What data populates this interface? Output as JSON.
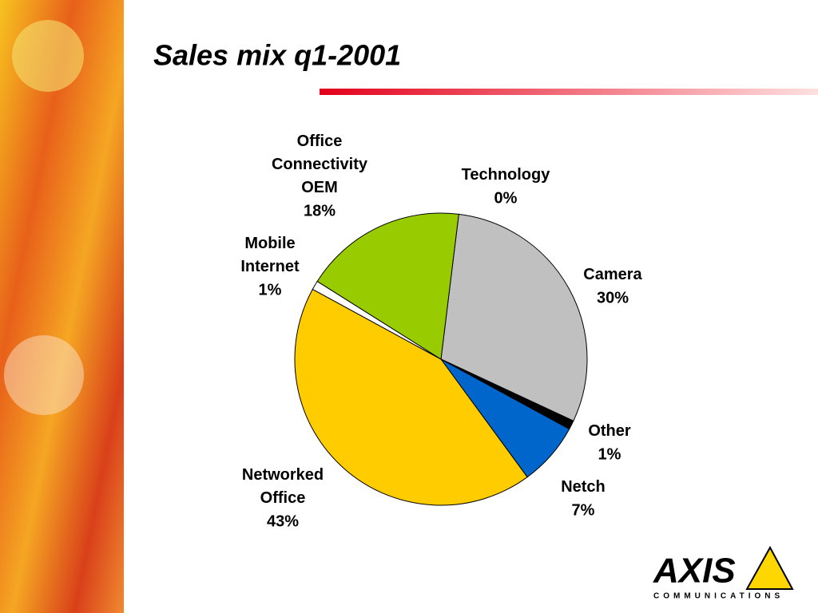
{
  "chart_data": {
    "type": "pie",
    "title": "Sales mix q1-2001",
    "categories": [
      "Technology",
      "Camera",
      "Other",
      "Netch",
      "Networked Office",
      "Mobile Internet",
      "Office Connectivity OEM"
    ],
    "values": [
      0,
      30,
      1,
      7,
      43,
      1,
      18
    ],
    "value_labels": [
      "0%",
      "30%",
      "1%",
      "7%",
      "43%",
      "1%",
      "18%"
    ],
    "colors": [
      "#000000",
      "#c0c0c0",
      "#000000",
      "#0066cc",
      "#ffcc00",
      "#ffffff",
      "#99cc00"
    ]
  },
  "logo": {
    "name": "AXIS",
    "tagline": "COMMUNICATIONS"
  }
}
